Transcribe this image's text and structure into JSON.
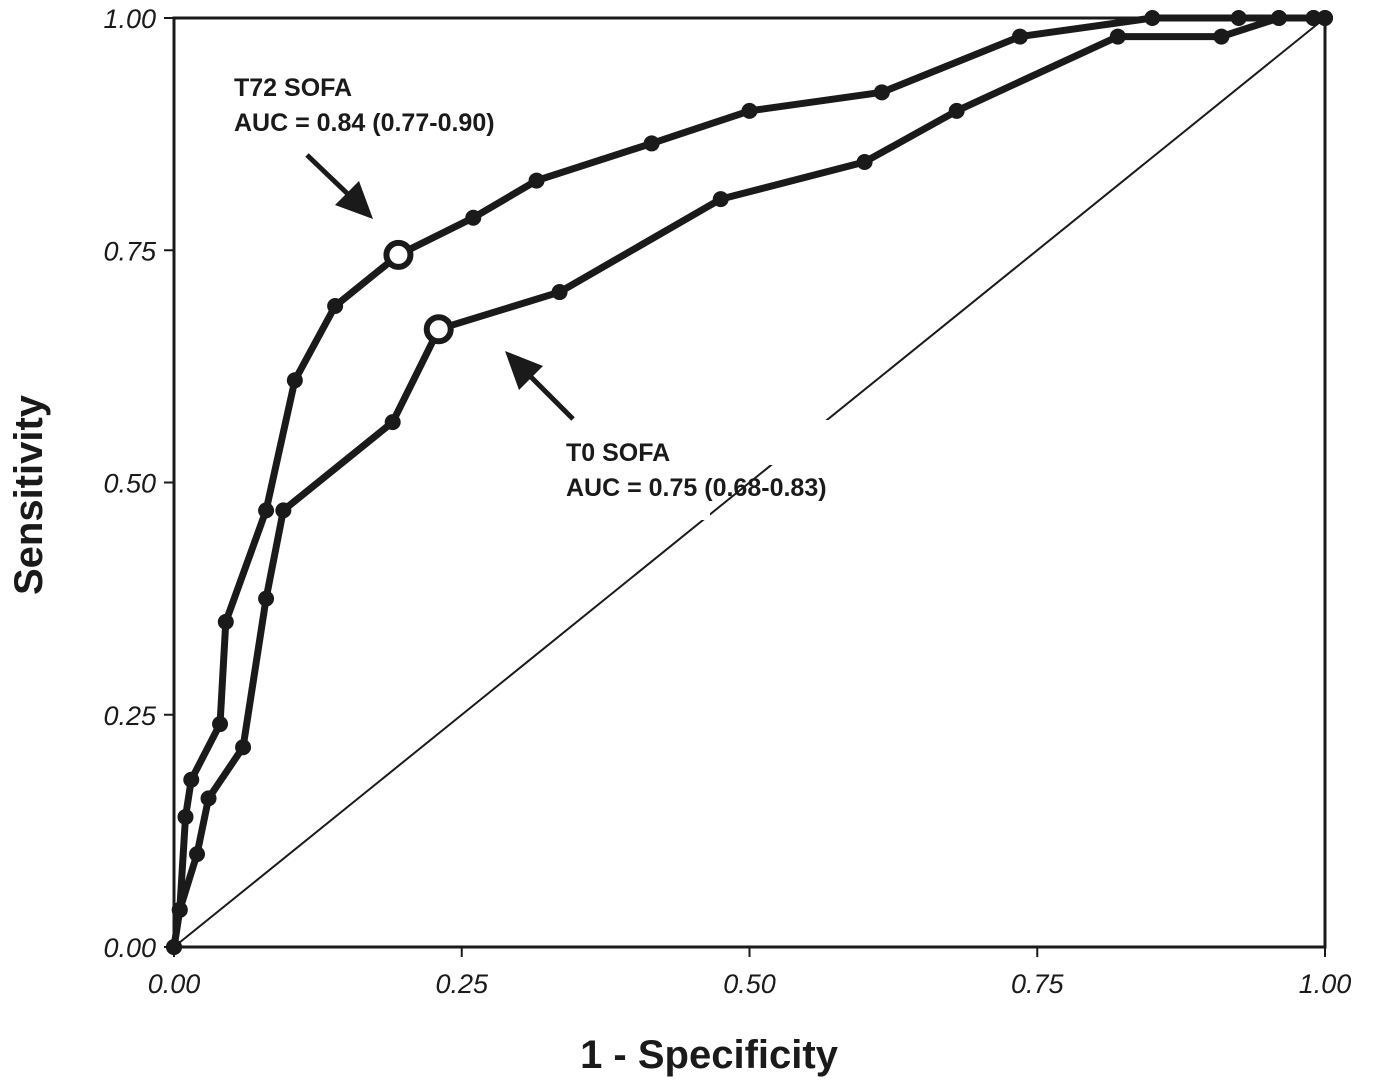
{
  "chart_data": {
    "type": "line",
    "title": "",
    "xlabel": "1 - Specificity",
    "ylabel": "Sensitivity",
    "xlim": [
      0,
      1
    ],
    "ylim": [
      0,
      1
    ],
    "xticks": [
      "0.00",
      "0.25",
      "0.50",
      "0.75",
      "1.00"
    ],
    "yticks": [
      "0.00",
      "0.25",
      "0.50",
      "0.75",
      "1.00"
    ],
    "grid": false,
    "line_color": "#1a1a1a",
    "reference_line": {
      "x": [
        0,
        1
      ],
      "y": [
        0,
        1
      ]
    },
    "series": [
      {
        "name": "T72 SOFA",
        "x": [
          0.0,
          0.005,
          0.01,
          0.015,
          0.04,
          0.045,
          0.08,
          0.105,
          0.14,
          0.195,
          0.26,
          0.315,
          0.415,
          0.5,
          0.615,
          0.735,
          0.85,
          0.925,
          0.96,
          0.99,
          1.0
        ],
        "y": [
          0.0,
          0.04,
          0.14,
          0.18,
          0.24,
          0.35,
          0.47,
          0.61,
          0.69,
          0.745,
          0.785,
          0.825,
          0.865,
          0.9,
          0.92,
          0.98,
          1.0,
          1.0,
          1.0,
          1.0,
          1.0
        ],
        "marked_point": {
          "x": 0.195,
          "y": 0.745
        }
      },
      {
        "name": "T0 SOFA",
        "x": [
          0.0,
          0.005,
          0.02,
          0.03,
          0.06,
          0.08,
          0.095,
          0.19,
          0.23,
          0.335,
          0.475,
          0.6,
          0.68,
          0.82,
          0.91,
          0.96,
          0.99,
          1.0
        ],
        "y": [
          0.0,
          0.04,
          0.1,
          0.16,
          0.215,
          0.375,
          0.47,
          0.565,
          0.665,
          0.705,
          0.805,
          0.845,
          0.9,
          0.98,
          0.98,
          1.0,
          1.0,
          1.0
        ],
        "marked_point": {
          "x": 0.23,
          "y": 0.665
        }
      }
    ],
    "annotations": [
      {
        "series": "T72 SOFA",
        "line1": "T72 SOFA",
        "line2": "AUC = 0.84 (0.77-0.90)"
      },
      {
        "series": "T0 SOFA",
        "line1": "T0 SOFA",
        "line2": "AUC = 0.75 (0.68-0.83)"
      }
    ]
  }
}
